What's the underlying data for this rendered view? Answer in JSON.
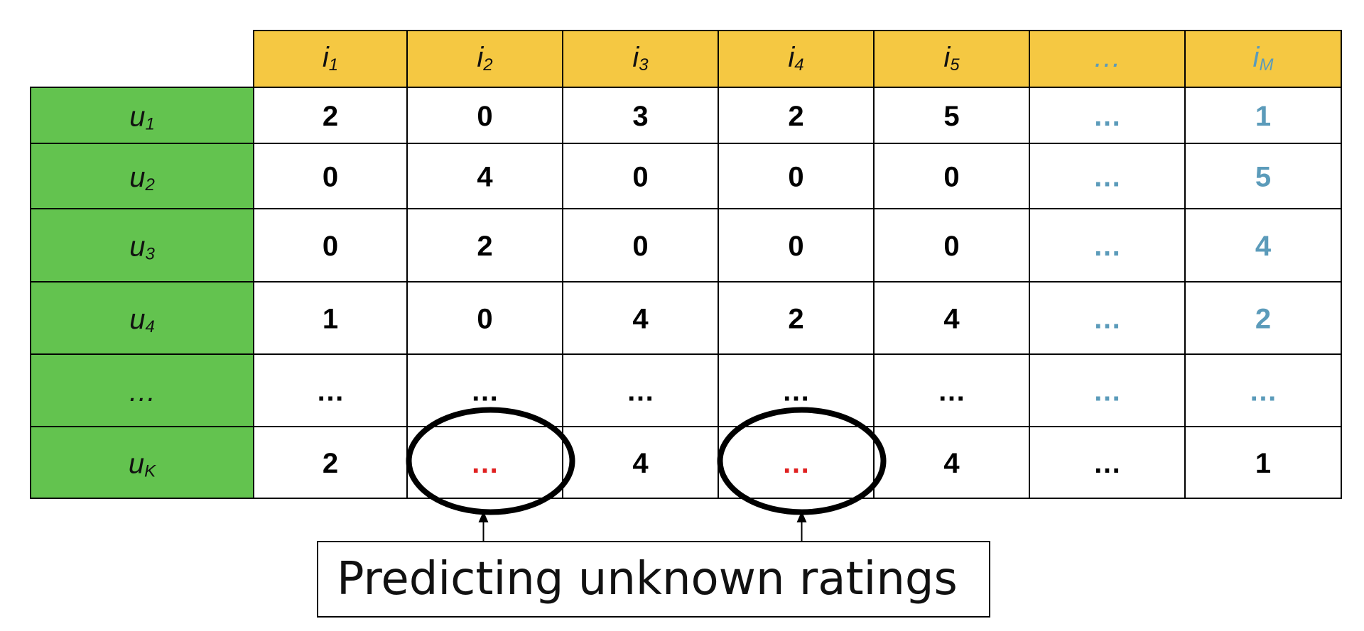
{
  "matrix": {
    "columns": [
      {
        "base": "i",
        "sub": "1"
      },
      {
        "base": "i",
        "sub": "2"
      },
      {
        "base": "i",
        "sub": "3"
      },
      {
        "base": "i",
        "sub": "4"
      },
      {
        "base": "i",
        "sub": "5"
      },
      {
        "base": "…",
        "sub": ""
      },
      {
        "base": "i",
        "sub": "M"
      }
    ],
    "rows": [
      {
        "label": {
          "base": "u",
          "sub": "1"
        },
        "values": [
          "2",
          "0",
          "3",
          "2",
          "5",
          "…",
          "1"
        ]
      },
      {
        "label": {
          "base": "u",
          "sub": "2"
        },
        "values": [
          "0",
          "4",
          "0",
          "0",
          "0",
          "…",
          "5"
        ]
      },
      {
        "label": {
          "base": "u",
          "sub": "3"
        },
        "values": [
          "0",
          "2",
          "0",
          "0",
          "0",
          "…",
          "4"
        ]
      },
      {
        "label": {
          "base": "u",
          "sub": "4"
        },
        "values": [
          "1",
          "0",
          "4",
          "2",
          "4",
          "…",
          "2"
        ]
      },
      {
        "label": {
          "base": "…",
          "sub": ""
        },
        "values": [
          "…",
          "…",
          "…",
          "…",
          "…",
          "…",
          "…"
        ]
      },
      {
        "label": {
          "base": "u",
          "sub": "K"
        },
        "values": [
          "2",
          "…",
          "4",
          "…",
          "4",
          "…",
          "1"
        ]
      }
    ],
    "unknown_cells": [
      [
        5,
        1
      ],
      [
        5,
        3
      ]
    ],
    "colors": {
      "header_bg": "#f5c842",
      "row_label_bg": "#63c34f",
      "cell_bg": "#ffffff",
      "border": "#000000",
      "muted_blue": "#5b9bba",
      "unknown_red": "#e02020"
    }
  },
  "callout": {
    "text": "Predicting unknown ratings"
  }
}
